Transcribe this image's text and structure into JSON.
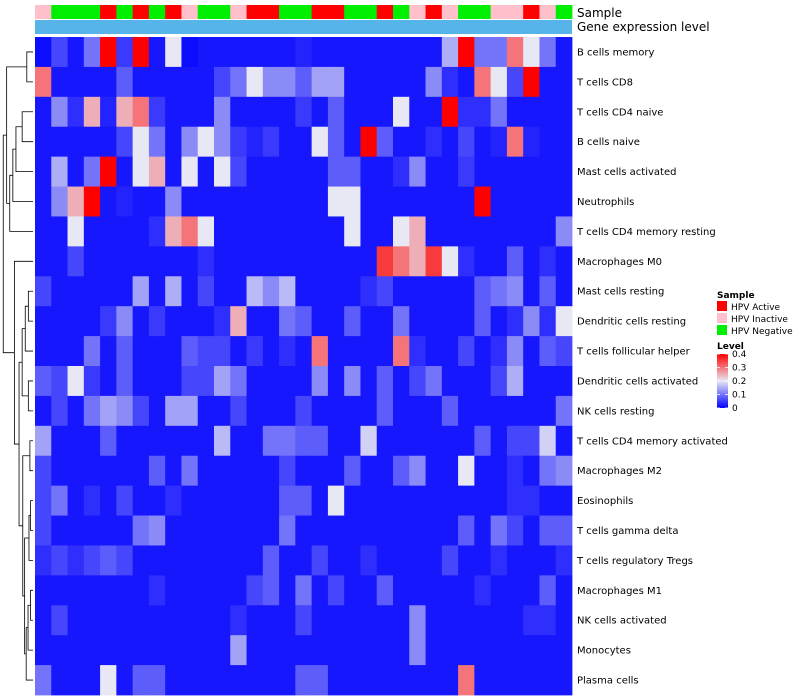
{
  "chart_data": {
    "type": "heatmap",
    "title": "",
    "annotation_labels": [
      "Sample",
      "Gene expression level"
    ],
    "sample_legend": {
      "title": "Sample",
      "entries": [
        {
          "label": "HPV Active",
          "color": "#ff0000"
        },
        {
          "label": "HPV Inactive",
          "color": "#ffc0cb"
        },
        {
          "label": "HPV Negative",
          "color": "#00ee00"
        }
      ]
    },
    "color_legend": {
      "title": "Level",
      "min": 0,
      "max": 0.4,
      "ticks": [
        0,
        0.1,
        0.2,
        0.3,
        0.4
      ],
      "tick_labels": [
        "0",
        "0.1",
        "0.2",
        "0.3",
        "0.4"
      ],
      "colors": [
        "#0000ff",
        "#e8e8f4",
        "#ff0000"
      ]
    },
    "rows": [
      "B cells memory",
      "T cells CD8",
      "T cells CD4 naive",
      "B cells naive",
      "Mast cells activated",
      "Neutrophils",
      "T cells CD4 memory resting",
      "Macrophages M0",
      "Mast cells resting",
      "Dendritic cells resting",
      "T cells follicular helper",
      "Dendritic cells activated",
      "NK cells resting",
      "T cells CD4 memory activated",
      "Macrophages M2",
      "Eosinophils",
      "T cells gamma delta",
      "T cells regulatory  Tregs",
      "Macrophages M1",
      "NK cells activated",
      "Monocytes",
      "Plasma cells"
    ],
    "sample_groups": [
      "I",
      "N",
      "N",
      "N",
      "A",
      "N",
      "A",
      "N",
      "A",
      "I",
      "N",
      "N",
      "I",
      "A",
      "A",
      "N",
      "N",
      "A",
      "A",
      "N",
      "N",
      "A",
      "N",
      "I",
      "A",
      "I",
      "N",
      "N",
      "I",
      "I",
      "A",
      "I",
      "N"
    ],
    "values": [
      [
        0.01,
        0.06,
        0.02,
        0.1,
        0.4,
        0.05,
        0.4,
        0.02,
        0.2,
        0.01,
        0.02,
        0.02,
        0.02,
        0.02,
        0.02,
        0.02,
        0.03,
        0.02,
        0.02,
        0.02,
        0.02,
        0.02,
        0.02,
        0.02,
        0.02,
        0.15,
        0.4,
        0.1,
        0.1,
        0.3,
        0.2,
        0.1,
        0.02
      ],
      [
        0.3,
        0.02,
        0.02,
        0.02,
        0.02,
        0.08,
        0.02,
        0.02,
        0.02,
        0.02,
        0.02,
        0.06,
        0.1,
        0.2,
        0.12,
        0.12,
        0.08,
        0.14,
        0.14,
        0.02,
        0.02,
        0.02,
        0.02,
        0.02,
        0.12,
        0.04,
        0.02,
        0.3,
        0.2,
        0.06,
        0.4,
        0.02,
        0.02
      ],
      [
        0.02,
        0.12,
        0.04,
        0.25,
        0.03,
        0.25,
        0.3,
        0.05,
        0.02,
        0.02,
        0.02,
        0.12,
        0.02,
        0.02,
        0.02,
        0.02,
        0.05,
        0.02,
        0.08,
        0.02,
        0.02,
        0.02,
        0.2,
        0.02,
        0.02,
        0.4,
        0.04,
        0.04,
        0.1,
        0.02,
        0.02,
        0.02,
        0.02
      ],
      [
        0.02,
        0.02,
        0.02,
        0.02,
        0.02,
        0.06,
        0.2,
        0.1,
        0.02,
        0.12,
        0.2,
        0.12,
        0.05,
        0.03,
        0.05,
        0.02,
        0.02,
        0.2,
        0.08,
        0.02,
        0.4,
        0.08,
        0.02,
        0.02,
        0.04,
        0.02,
        0.06,
        0.02,
        0.03,
        0.3,
        0.03,
        0.02,
        0.02
      ],
      [
        0.02,
        0.15,
        0.02,
        0.1,
        0.4,
        0.02,
        0.2,
        0.25,
        0.02,
        0.2,
        0.02,
        0.2,
        0.06,
        0.02,
        0.02,
        0.02,
        0.02,
        0.02,
        0.08,
        0.08,
        0.02,
        0.02,
        0.04,
        0.12,
        0.02,
        0.02,
        0.05,
        0.02,
        0.02,
        0.02,
        0.02,
        0.02,
        0.02
      ],
      [
        0.02,
        0.12,
        0.25,
        0.4,
        0.02,
        0.03,
        0.02,
        0.02,
        0.12,
        0.02,
        0.02,
        0.02,
        0.02,
        0.02,
        0.02,
        0.02,
        0.02,
        0.02,
        0.2,
        0.2,
        0.02,
        0.02,
        0.02,
        0.02,
        0.02,
        0.02,
        0.02,
        0.4,
        0.02,
        0.02,
        0.02,
        0.02,
        0.02
      ],
      [
        0.02,
        0.02,
        0.2,
        0.02,
        0.02,
        0.02,
        0.02,
        0.04,
        0.25,
        0.3,
        0.2,
        0.02,
        0.02,
        0.02,
        0.02,
        0.02,
        0.02,
        0.02,
        0.02,
        0.2,
        0.02,
        0.02,
        0.2,
        0.25,
        0.02,
        0.02,
        0.02,
        0.02,
        0.02,
        0.02,
        0.02,
        0.02,
        0.12
      ],
      [
        0.02,
        0.02,
        0.06,
        0.02,
        0.02,
        0.02,
        0.02,
        0.02,
        0.02,
        0.02,
        0.04,
        0.02,
        0.02,
        0.02,
        0.02,
        0.02,
        0.02,
        0.02,
        0.02,
        0.02,
        0.02,
        0.35,
        0.3,
        0.25,
        0.35,
        0.2,
        0.04,
        0.02,
        0.02,
        0.08,
        0.02,
        0.04,
        0.02
      ],
      [
        0.06,
        0.02,
        0.02,
        0.02,
        0.02,
        0.02,
        0.14,
        0.02,
        0.15,
        0.02,
        0.06,
        0.02,
        0.02,
        0.16,
        0.12,
        0.16,
        0.02,
        0.02,
        0.02,
        0.02,
        0.04,
        0.06,
        0.02,
        0.02,
        0.02,
        0.02,
        0.02,
        0.08,
        0.1,
        0.12,
        0.02,
        0.08,
        0.02
      ],
      [
        0.02,
        0.02,
        0.02,
        0.02,
        0.05,
        0.12,
        0.02,
        0.05,
        0.02,
        0.02,
        0.02,
        0.04,
        0.25,
        0.02,
        0.02,
        0.1,
        0.08,
        0.02,
        0.02,
        0.08,
        0.02,
        0.02,
        0.1,
        0.02,
        0.02,
        0.02,
        0.02,
        0.08,
        0.02,
        0.04,
        0.12,
        0.04,
        0.2
      ],
      [
        0.02,
        0.02,
        0.02,
        0.1,
        0.02,
        0.08,
        0.02,
        0.02,
        0.02,
        0.08,
        0.06,
        0.06,
        0.02,
        0.05,
        0.02,
        0.04,
        0.02,
        0.3,
        0.02,
        0.02,
        0.02,
        0.02,
        0.3,
        0.04,
        0.02,
        0.02,
        0.06,
        0.02,
        0.04,
        0.12,
        0.02,
        0.08,
        0.06
      ],
      [
        0.08,
        0.06,
        0.2,
        0.05,
        0.02,
        0.08,
        0.02,
        0.02,
        0.02,
        0.06,
        0.06,
        0.14,
        0.1,
        0.02,
        0.02,
        0.02,
        0.02,
        0.12,
        0.02,
        0.12,
        0.02,
        0.08,
        0.02,
        0.06,
        0.1,
        0.02,
        0.02,
        0.02,
        0.06,
        0.15,
        0.02,
        0.02,
        0.02
      ],
      [
        0.02,
        0.06,
        0.02,
        0.1,
        0.14,
        0.12,
        0.06,
        0.02,
        0.14,
        0.14,
        0.02,
        0.02,
        0.06,
        0.02,
        0.02,
        0.02,
        0.06,
        0.02,
        0.02,
        0.02,
        0.02,
        0.08,
        0.02,
        0.02,
        0.02,
        0.08,
        0.02,
        0.02,
        0.02,
        0.02,
        0.02,
        0.02,
        0.1
      ],
      [
        0.14,
        0.02,
        0.02,
        0.02,
        0.08,
        0.02,
        0.02,
        0.02,
        0.02,
        0.02,
        0.02,
        0.16,
        0.02,
        0.02,
        0.1,
        0.1,
        0.08,
        0.08,
        0.02,
        0.02,
        0.18,
        0.02,
        0.02,
        0.02,
        0.02,
        0.02,
        0.02,
        0.08,
        0.02,
        0.06,
        0.06,
        0.18,
        0.02
      ],
      [
        0.06,
        0.02,
        0.02,
        0.02,
        0.02,
        0.02,
        0.02,
        0.08,
        0.02,
        0.1,
        0.02,
        0.02,
        0.02,
        0.02,
        0.02,
        0.06,
        0.02,
        0.02,
        0.02,
        0.08,
        0.02,
        0.02,
        0.08,
        0.12,
        0.02,
        0.02,
        0.2,
        0.02,
        0.02,
        0.04,
        0.02,
        0.1,
        0.12
      ],
      [
        0.06,
        0.1,
        0.02,
        0.04,
        0.02,
        0.06,
        0.02,
        0.02,
        0.04,
        0.02,
        0.02,
        0.02,
        0.02,
        0.02,
        0.02,
        0.08,
        0.08,
        0.02,
        0.2,
        0.02,
        0.02,
        0.02,
        0.02,
        0.02,
        0.02,
        0.02,
        0.02,
        0.02,
        0.02,
        0.04,
        0.04,
        0.02,
        0.02
      ],
      [
        0.06,
        0.02,
        0.02,
        0.02,
        0.02,
        0.02,
        0.1,
        0.12,
        0.02,
        0.02,
        0.02,
        0.02,
        0.02,
        0.02,
        0.02,
        0.1,
        0.02,
        0.02,
        0.02,
        0.02,
        0.02,
        0.02,
        0.02,
        0.02,
        0.02,
        0.02,
        0.08,
        0.02,
        0.1,
        0.06,
        0.02,
        0.08,
        0.08
      ],
      [
        0.04,
        0.06,
        0.04,
        0.06,
        0.08,
        0.06,
        0.02,
        0.02,
        0.02,
        0.02,
        0.02,
        0.02,
        0.02,
        0.02,
        0.08,
        0.02,
        0.02,
        0.06,
        0.02,
        0.02,
        0.04,
        0.02,
        0.02,
        0.02,
        0.02,
        0.06,
        0.02,
        0.02,
        0.04,
        0.02,
        0.02,
        0.02,
        0.04
      ],
      [
        0.02,
        0.02,
        0.02,
        0.02,
        0.02,
        0.02,
        0.02,
        0.04,
        0.02,
        0.02,
        0.02,
        0.02,
        0.02,
        0.06,
        0.08,
        0.02,
        0.1,
        0.02,
        0.06,
        0.02,
        0.02,
        0.08,
        0.02,
        0.02,
        0.02,
        0.02,
        0.02,
        0.04,
        0.02,
        0.02,
        0.02,
        0.08,
        0.02
      ],
      [
        0.02,
        0.06,
        0.02,
        0.02,
        0.02,
        0.02,
        0.02,
        0.02,
        0.02,
        0.02,
        0.02,
        0.02,
        0.04,
        0.02,
        0.02,
        0.02,
        0.06,
        0.02,
        0.02,
        0.02,
        0.02,
        0.02,
        0.02,
        0.12,
        0.02,
        0.02,
        0.02,
        0.02,
        0.02,
        0.02,
        0.04,
        0.04,
        0.02
      ],
      [
        0.02,
        0.02,
        0.02,
        0.02,
        0.02,
        0.02,
        0.02,
        0.02,
        0.02,
        0.02,
        0.02,
        0.02,
        0.14,
        0.02,
        0.02,
        0.02,
        0.02,
        0.02,
        0.02,
        0.02,
        0.02,
        0.02,
        0.02,
        0.12,
        0.02,
        0.02,
        0.02,
        0.02,
        0.02,
        0.02,
        0.02,
        0.02,
        0.02
      ],
      [
        0.1,
        0.02,
        0.02,
        0.02,
        0.2,
        0.02,
        0.08,
        0.08,
        0.02,
        0.02,
        0.02,
        0.02,
        0.02,
        0.02,
        0.02,
        0.02,
        0.08,
        0.08,
        0.02,
        0.02,
        0.02,
        0.02,
        0.02,
        0.02,
        0.02,
        0.02,
        0.3,
        0.02,
        0.02,
        0.02,
        0.02,
        0.02,
        0.02
      ]
    ]
  }
}
